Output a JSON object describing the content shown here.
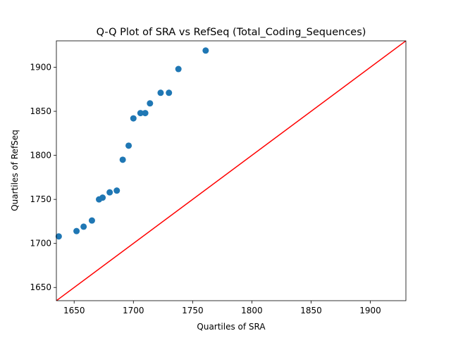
{
  "chart_data": {
    "type": "scatter",
    "title": "Q-Q Plot of SRA vs RefSeq (Total_Coding_Sequences)",
    "xlabel": "Quartiles of SRA",
    "ylabel": "Quartiles of RefSeq",
    "xlim": [
      1635,
      1930
    ],
    "ylim": [
      1635,
      1930
    ],
    "xticks": [
      1650,
      1700,
      1750,
      1800,
      1850,
      1900
    ],
    "yticks": [
      1650,
      1700,
      1750,
      1800,
      1850,
      1900
    ],
    "grid": false,
    "legend": "none",
    "series": [
      {
        "color": "#1f77b4",
        "points": [
          {
            "x": 1637,
            "y": 1708
          },
          {
            "x": 1652,
            "y": 1714
          },
          {
            "x": 1658,
            "y": 1719
          },
          {
            "x": 1665,
            "y": 1726
          },
          {
            "x": 1671,
            "y": 1750
          },
          {
            "x": 1674,
            "y": 1752
          },
          {
            "x": 1680,
            "y": 1758
          },
          {
            "x": 1686,
            "y": 1760
          },
          {
            "x": 1691,
            "y": 1795
          },
          {
            "x": 1696,
            "y": 1811
          },
          {
            "x": 1700,
            "y": 1842
          },
          {
            "x": 1706,
            "y": 1848
          },
          {
            "x": 1710,
            "y": 1848
          },
          {
            "x": 1714,
            "y": 1859
          },
          {
            "x": 1723,
            "y": 1871
          },
          {
            "x": 1730,
            "y": 1871
          },
          {
            "x": 1738,
            "y": 1898
          },
          {
            "x": 1761,
            "y": 1919
          }
        ]
      }
    ],
    "reference_line": {
      "color": "#ff0000",
      "from": [
        1635,
        1635
      ],
      "to": [
        1930,
        1930
      ]
    }
  }
}
